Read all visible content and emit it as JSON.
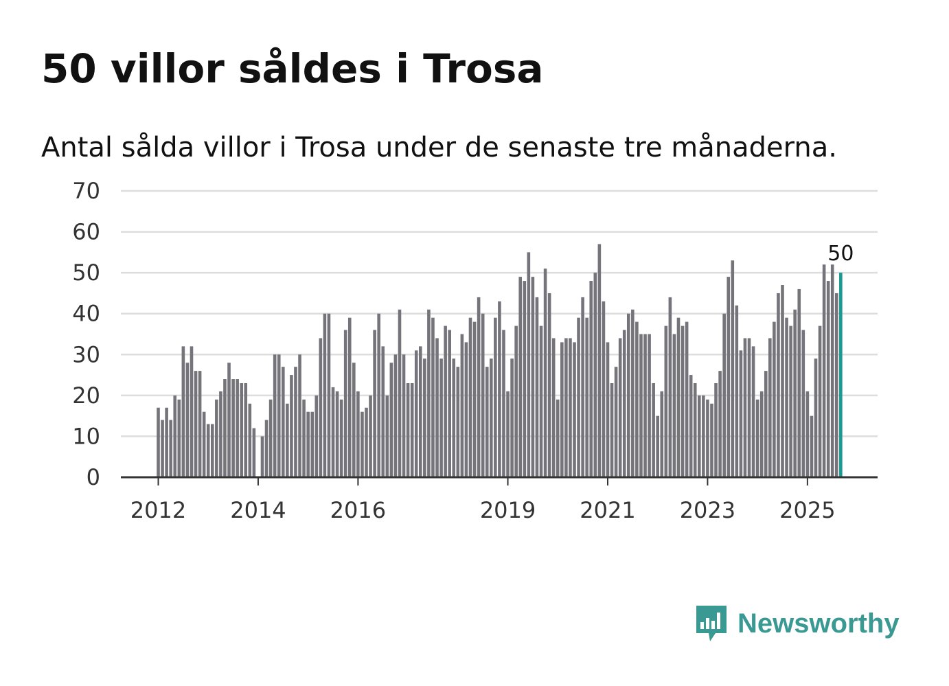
{
  "header": {
    "title": "50 villor såldes i Trosa",
    "subtitle": "Antal sålda villor i Trosa under de senaste tre månaderna."
  },
  "brand": {
    "name": "Newsworthy",
    "color": "#3a9a93"
  },
  "colors": {
    "bar": "#75747a",
    "highlight": "#1a9a92",
    "grid": "#dddddd",
    "axis": "#333333"
  },
  "chart_data": {
    "type": "bar",
    "title": "50 villor såldes i Trosa",
    "subtitle": "Antal sålda villor i Trosa under de senaste tre månaderna.",
    "xlabel": "",
    "ylabel": "",
    "ylim": [
      0,
      70
    ],
    "yticks": [
      "0",
      "10",
      "20",
      "30",
      "40",
      "50",
      "60",
      "70"
    ],
    "xticks": [
      {
        "label": "2012",
        "index": 0
      },
      {
        "label": "2014",
        "index": 24
      },
      {
        "label": "2016",
        "index": 48
      },
      {
        "label": "2019",
        "index": 84
      },
      {
        "label": "2021",
        "index": 108
      },
      {
        "label": "2023",
        "index": 132
      },
      {
        "label": "2025",
        "index": 156
      }
    ],
    "grid": true,
    "highlight_last": true,
    "last_label": "50",
    "values": [
      17,
      14,
      17,
      14,
      20,
      19,
      32,
      28,
      32,
      26,
      26,
      16,
      13,
      13,
      19,
      21,
      24,
      28,
      24,
      24,
      23,
      23,
      18,
      12,
      0,
      10,
      14,
      19,
      30,
      30,
      27,
      18,
      25,
      27,
      30,
      19,
      16,
      16,
      20,
      34,
      40,
      40,
      22,
      21,
      19,
      36,
      39,
      28,
      21,
      16,
      17,
      20,
      36,
      40,
      32,
      20,
      28,
      30,
      41,
      30,
      23,
      23,
      31,
      32,
      29,
      41,
      39,
      34,
      29,
      37,
      36,
      29,
      27,
      35,
      33,
      39,
      38,
      44,
      40,
      27,
      29,
      39,
      43,
      36,
      21,
      29,
      37,
      49,
      48,
      55,
      49,
      44,
      37,
      51,
      45,
      34,
      19,
      33,
      34,
      34,
      33,
      39,
      44,
      39,
      48,
      50,
      57,
      43,
      33,
      23,
      27,
      34,
      36,
      40,
      41,
      38,
      35,
      35,
      35,
      23,
      15,
      21,
      37,
      44,
      35,
      39,
      37,
      38,
      25,
      23,
      20,
      20,
      19,
      18,
      23,
      26,
      40,
      49,
      53,
      42,
      31,
      34,
      34,
      32,
      19,
      21,
      26,
      34,
      38,
      45,
      47,
      39,
      37,
      41,
      46,
      36,
      21,
      15,
      29,
      37,
      52,
      48,
      52,
      45,
      50
    ]
  }
}
